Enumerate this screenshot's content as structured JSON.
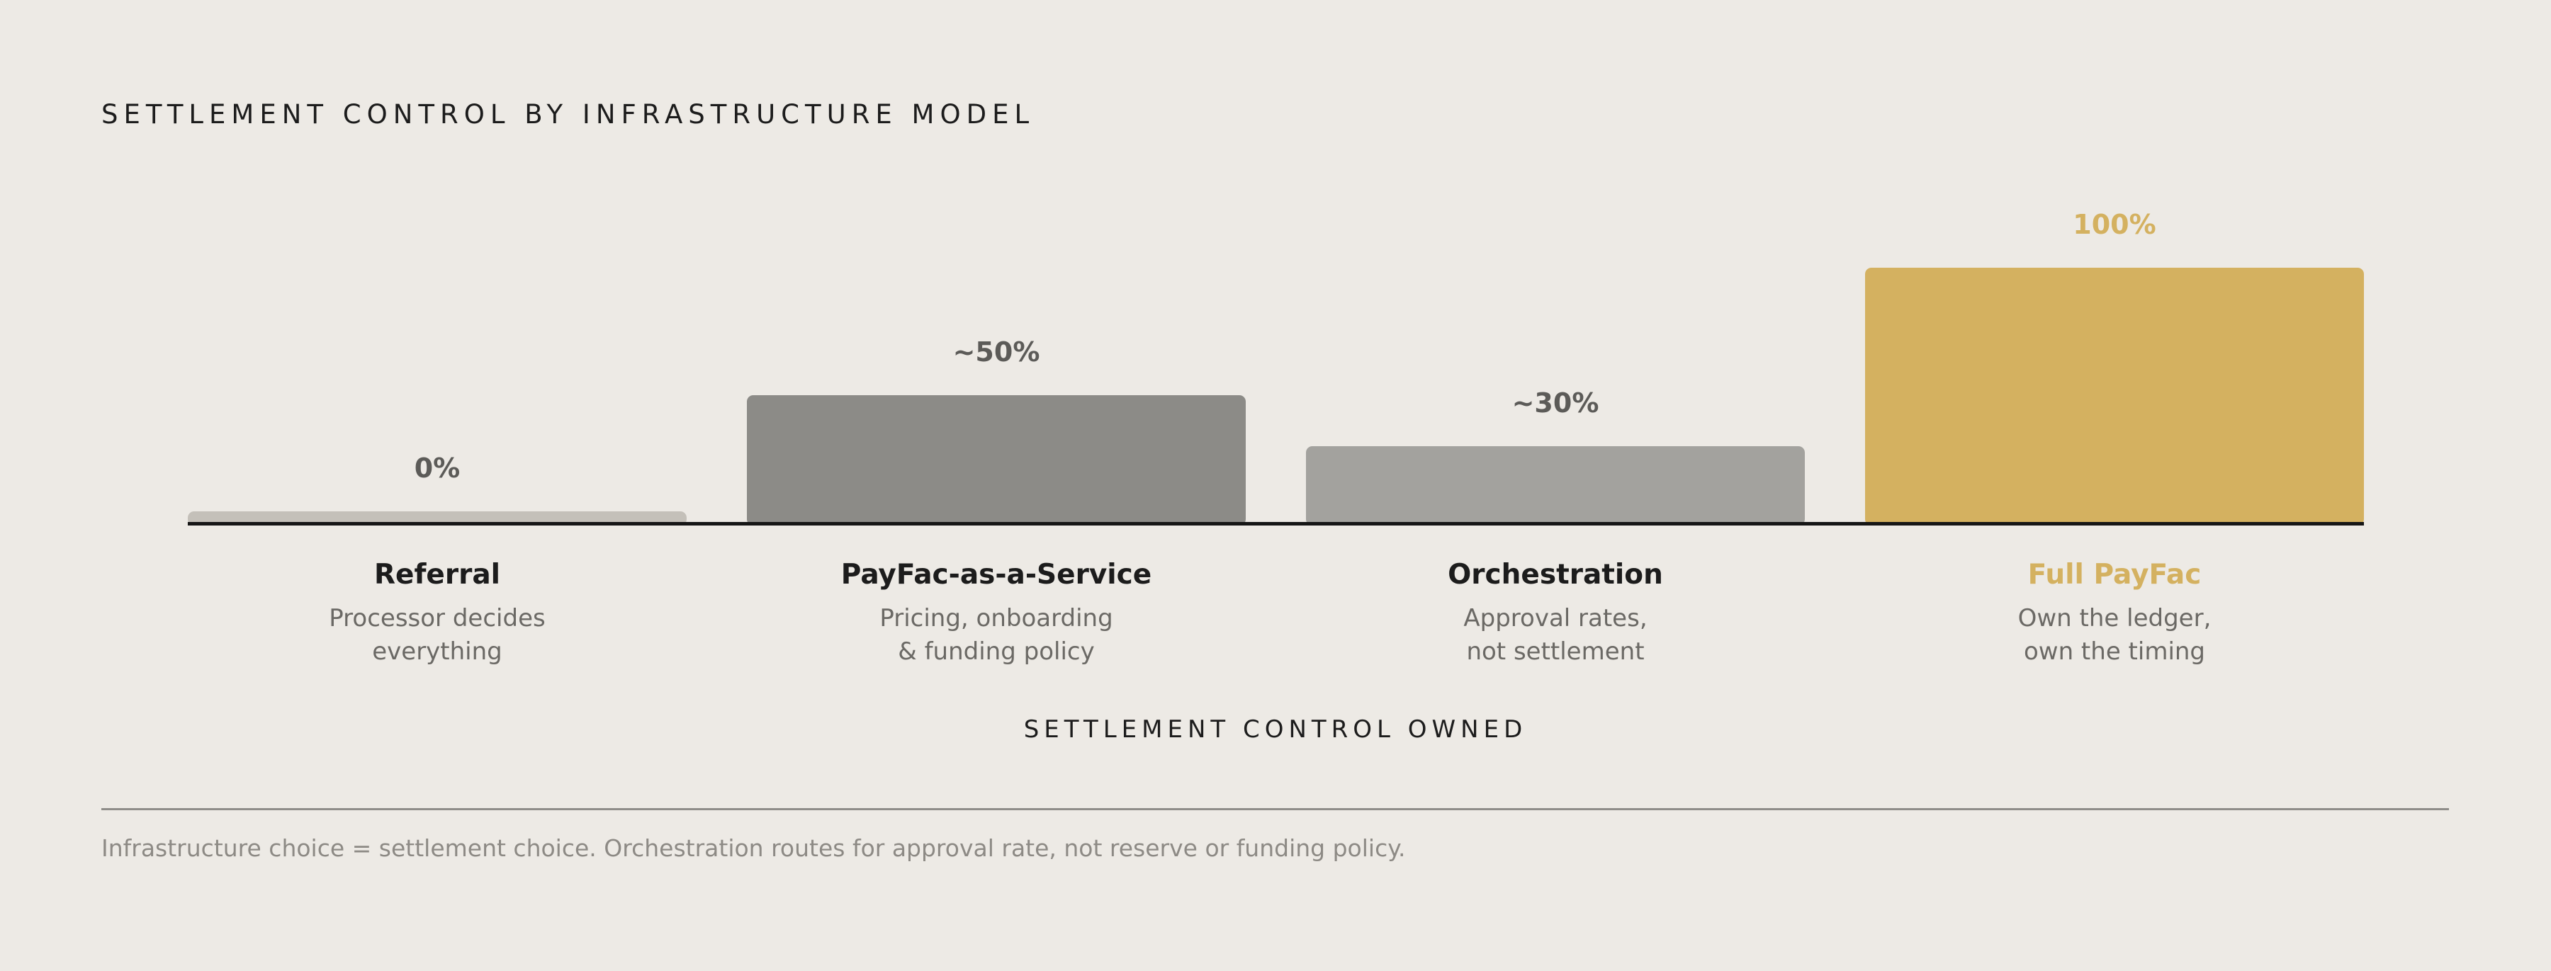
{
  "chart_data": {
    "type": "bar",
    "title": "SETTLEMENT CONTROL BY INFRASTRUCTURE MODEL",
    "xlabel": "SETTLEMENT CONTROL OWNED",
    "ylabel": "",
    "ylim": [
      0,
      100
    ],
    "grid": false,
    "categories": [
      "Referral",
      "PayFac-as-a-Service",
      "Orchestration",
      "Full PayFac"
    ],
    "values": [
      0,
      50,
      30,
      100
    ],
    "value_labels": [
      "0%",
      "~50%",
      "~30%",
      "100%"
    ],
    "descriptions": [
      [
        "Processor decides",
        "everything"
      ],
      [
        "Pricing, onboarding",
        "& funding policy"
      ],
      [
        "Approval rates,",
        "not settlement"
      ],
      [
        "Own the ledger,",
        "own the timing"
      ]
    ],
    "colors": [
      "#c4c0b9",
      "#8c8b87",
      "#a3a29e",
      "#d4b160"
    ],
    "label_colors": [
      "#1c1c1c",
      "#1c1c1c",
      "#1c1c1c",
      "#d4b160"
    ],
    "value_label_colors": [
      "#5c5b58",
      "#5c5b58",
      "#5c5b58",
      "#d4b160"
    ],
    "highlight_index": 3
  },
  "footnote": "Infrastructure choice = settlement choice. Orchestration routes for approval rate, not reserve or funding policy."
}
